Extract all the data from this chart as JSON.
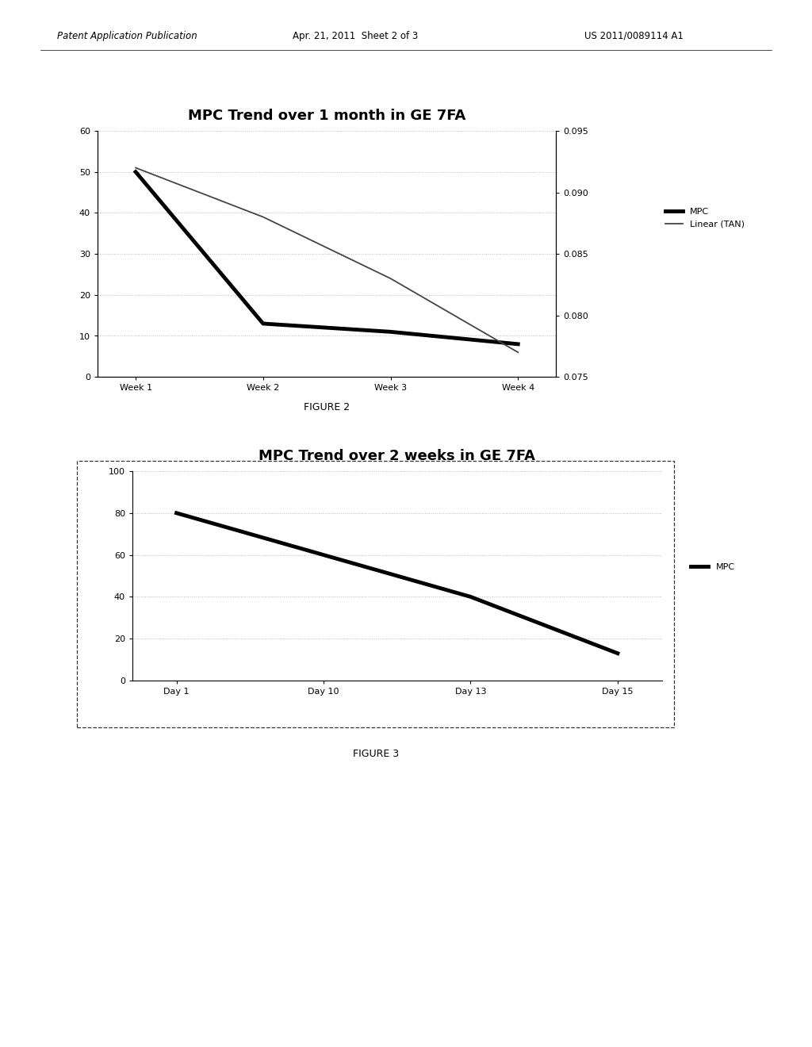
{
  "page_bg": "#ffffff",
  "header_text": "Patent Application Publication",
  "header_date": "Apr. 21, 2011  Sheet 2 of 3",
  "header_patent": "US 2011/0089114 A1",
  "fig2": {
    "title": "MPC Trend over 1 month in GE 7FA",
    "title_fontsize": 13,
    "x_labels": [
      "Week 1",
      "Week 2",
      "Week 3",
      "Week 4"
    ],
    "x_values": [
      0,
      1,
      2,
      3
    ],
    "mpc_values": [
      50,
      13,
      11,
      8
    ],
    "tan_values": [
      0.092,
      0.088,
      0.083,
      0.077
    ],
    "yleft_min": 0,
    "yleft_max": 60,
    "yleft_ticks": [
      0,
      10,
      20,
      30,
      40,
      50,
      60
    ],
    "yright_min": 0.075,
    "yright_max": 0.095,
    "yright_ticks": [
      0.075,
      0.08,
      0.085,
      0.09,
      0.095
    ],
    "caption": "FIGURE 2",
    "mpc_color": "#000000",
    "tan_color": "#444444",
    "grid_color": "#bbbbbb"
  },
  "fig3": {
    "title": "MPC Trend over 2 weeks in GE 7FA",
    "title_fontsize": 13,
    "x_labels": [
      "Day 1",
      "Day 10",
      "Day 13",
      "Day 15"
    ],
    "x_values": [
      0,
      1,
      2,
      3
    ],
    "mpc_values": [
      80,
      60,
      40,
      13
    ],
    "yleft_min": 0,
    "yleft_max": 100,
    "yleft_ticks": [
      0,
      20,
      40,
      60,
      80,
      100
    ],
    "caption": "FIGURE 3",
    "mpc_color": "#000000",
    "grid_color": "#bbbbbb"
  }
}
